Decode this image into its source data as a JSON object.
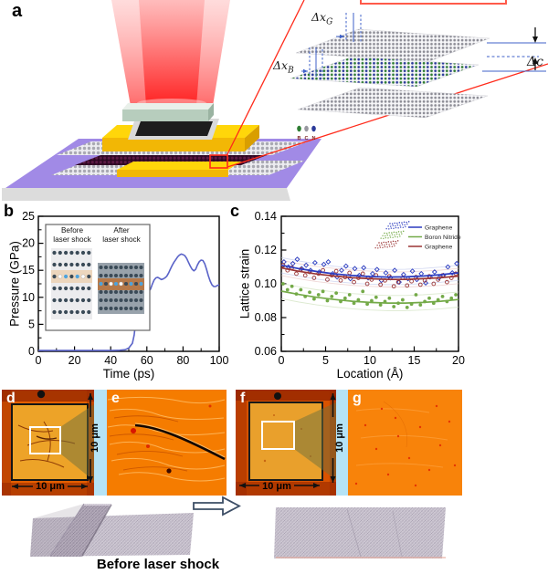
{
  "figure_labels": {
    "a": "a",
    "b": "b",
    "c": "c",
    "d": "d",
    "e": "e",
    "f": "f",
    "g": "g"
  },
  "panel_a": {
    "dx_g": {
      "base": "Δx",
      "sub": "G"
    },
    "dx_b": {
      "base": "Δx",
      "sub": "B"
    },
    "dc": "Δc",
    "atoms": [
      {
        "label": "B",
        "color": "#2e7d32"
      },
      {
        "label": "C",
        "color": "#97979f"
      },
      {
        "label": "N",
        "color": "#2b3a99"
      }
    ]
  },
  "colors": {
    "laser_red": "#ff4040",
    "substrate_purple": "#a18ae6",
    "stage_gold": "#ffd60a",
    "micrograph_orange": "#f57c00",
    "strip_blue": "#b5e3f6",
    "pressure_curve": "#5a63c8",
    "annotation_blue": "#3f62c9",
    "callout_red": "#ff2a1a"
  },
  "micrographs": {
    "scale_label": "10 μm"
  },
  "caption": {
    "before": "Before laser shock"
  },
  "chart_data": [
    {
      "type": "line",
      "xlabel": "Time (ps)",
      "ylabel": "Pressure (GPa)",
      "xlim": [
        0,
        100
      ],
      "ylim": [
        0,
        25
      ],
      "xtick_vals": [
        0,
        20,
        40,
        60,
        80,
        100
      ],
      "xtick_labels": [
        "0",
        "20",
        "40",
        "60",
        "80",
        "100"
      ],
      "ytick_vals": [
        0,
        5,
        10,
        15,
        20,
        25
      ],
      "ytick_labels": [
        "0",
        "5",
        "10",
        "15",
        "20",
        "25"
      ],
      "color": "#5a63c8",
      "points": [
        [
          0,
          0.15
        ],
        [
          10,
          0.15
        ],
        [
          20,
          0.15
        ],
        [
          30,
          0.15
        ],
        [
          40,
          0.15
        ],
        [
          45,
          0.2
        ],
        [
          48,
          0.3
        ],
        [
          50,
          0.6
        ],
        [
          52,
          1.5
        ],
        [
          53,
          3
        ],
        [
          54,
          6
        ],
        [
          55,
          11
        ],
        [
          56,
          19
        ],
        [
          57,
          23.2
        ],
        [
          57.5,
          22
        ],
        [
          58,
          17
        ],
        [
          59,
          13
        ],
        [
          60,
          11.6
        ],
        [
          61,
          11.1
        ],
        [
          62,
          11.5
        ],
        [
          63,
          12.4
        ],
        [
          64,
          13.2
        ],
        [
          65,
          13.6
        ],
        [
          66,
          13.7
        ],
        [
          67,
          13.5
        ],
        [
          68,
          13.3
        ],
        [
          69,
          13.4
        ],
        [
          70,
          13.6
        ],
        [
          71,
          13.9
        ],
        [
          72,
          14.5
        ],
        [
          73,
          15.2
        ],
        [
          74,
          15.9
        ],
        [
          75,
          16.5
        ],
        [
          76,
          17.0
        ],
        [
          77,
          17.5
        ],
        [
          78,
          17.8
        ],
        [
          79,
          18.0
        ],
        [
          80,
          17.9
        ],
        [
          81,
          17.7
        ],
        [
          82,
          17.2
        ],
        [
          83,
          16.5
        ],
        [
          84,
          15.8
        ],
        [
          85,
          15.2
        ],
        [
          86,
          14.9
        ],
        [
          87,
          15.2
        ],
        [
          88,
          16.0
        ],
        [
          89,
          16.6
        ],
        [
          90,
          16.9
        ],
        [
          91,
          16.8
        ],
        [
          92,
          16.2
        ],
        [
          93,
          15.2
        ],
        [
          94,
          14.0
        ],
        [
          95,
          13.0
        ],
        [
          96,
          12.3
        ],
        [
          97,
          12.0
        ],
        [
          98,
          12.0
        ],
        [
          99,
          12.2
        ],
        [
          100,
          12.3
        ]
      ],
      "inset": {
        "left_title_1": "Before",
        "left_title_2": "laser shock",
        "right_title_1": "After",
        "right_title_2": "laser shock",
        "dot_dark": "#3a4a57",
        "dot_blue": "#4da3dd",
        "dot_white": "#ffffff",
        "before_bg": "#ececee",
        "after_bg": "#98a2ab",
        "before_band": "#ecd6bd",
        "after_band": "#b5794a",
        "before_special": [
          "dark",
          "white",
          "blue",
          "dark",
          "blue",
          "white",
          "dark"
        ],
        "after_special": [
          "blue",
          "dark",
          "white",
          "blue",
          "white",
          "dark",
          "blue",
          "dark",
          "blue"
        ]
      }
    },
    {
      "type": "scatter",
      "xlabel": "Location (Å)",
      "ylabel": "Lattice strain",
      "xlim": [
        0,
        20
      ],
      "ylim": [
        0.06,
        0.14
      ],
      "xtick_vals": [
        0,
        5,
        10,
        15,
        20
      ],
      "xtick_labels": [
        "0",
        "5",
        "10",
        "15",
        "20"
      ],
      "ytick_vals": [
        0.06,
        0.08,
        0.1,
        0.12,
        0.14
      ],
      "ytick_labels": [
        "0.06",
        "0.08",
        "0.10",
        "0.12",
        "0.14"
      ],
      "legend_position": "top-right",
      "series": [
        {
          "name": "Graphene",
          "color": "#2b3bbf",
          "marker": "open-diamond",
          "band_color": "#b9c2ea",
          "curve": [
            [
              0,
              0.111
            ],
            [
              2,
              0.109
            ],
            [
              4,
              0.1073
            ],
            [
              6,
              0.1059
            ],
            [
              8,
              0.1049
            ],
            [
              10,
              0.1043
            ],
            [
              12,
              0.104
            ],
            [
              14,
              0.1041
            ],
            [
              16,
              0.1046
            ],
            [
              18,
              0.1054
            ],
            [
              20,
              0.1065
            ]
          ],
          "points": [
            [
              0.3,
              0.113
            ],
            [
              0.8,
              0.11
            ],
            [
              1.3,
              0.112
            ],
            [
              1.8,
              0.1145
            ],
            [
              2.3,
              0.109
            ],
            [
              2.8,
              0.111
            ],
            [
              3.3,
              0.108
            ],
            [
              3.8,
              0.1125
            ],
            [
              4.3,
              0.107
            ],
            [
              4.8,
              0.1115
            ],
            [
              5.3,
              0.113
            ],
            [
              5.8,
              0.106
            ],
            [
              6.3,
              0.104
            ],
            [
              6.8,
              0.108
            ],
            [
              7.3,
              0.1105
            ],
            [
              7.8,
              0.103
            ],
            [
              8.3,
              0.109
            ],
            [
              8.8,
              0.105
            ],
            [
              9.3,
              0.1095
            ],
            [
              9.8,
              0.1035
            ],
            [
              10.3,
              0.106
            ],
            [
              10.8,
              0.1085
            ],
            [
              11.3,
              0.102
            ],
            [
              11.8,
              0.1065
            ],
            [
              12.3,
              0.1035
            ],
            [
              12.8,
              0.108
            ],
            [
              13.3,
              0.101
            ],
            [
              13.8,
              0.1055
            ],
            [
              14.3,
              0.103
            ],
            [
              14.8,
              0.1075
            ],
            [
              15.3,
              0.1025
            ],
            [
              15.8,
              0.106
            ],
            [
              16.3,
              0.1005
            ],
            [
              16.8,
              0.104
            ],
            [
              17.3,
              0.107
            ],
            [
              17.8,
              0.1035
            ],
            [
              18.3,
              0.105
            ],
            [
              18.8,
              0.11
            ],
            [
              19.3,
              0.1065
            ],
            [
              19.8,
              0.112
            ]
          ]
        },
        {
          "name": "Boron Nitride",
          "color": "#74aa48",
          "marker": "filled-circle",
          "band_color": "#c6dcb2",
          "curve": [
            [
              0,
              0.0957
            ],
            [
              2,
              0.0937
            ],
            [
              4,
              0.092
            ],
            [
              6,
              0.0907
            ],
            [
              8,
              0.0897
            ],
            [
              10,
              0.089
            ],
            [
              12,
              0.0886
            ],
            [
              14,
              0.0886
            ],
            [
              16,
              0.089
            ],
            [
              18,
              0.0897
            ],
            [
              20,
              0.0907
            ]
          ],
          "points": [
            [
              0.2,
              0.1
            ],
            [
              0.7,
              0.0965
            ],
            [
              1.2,
              0.0985
            ],
            [
              1.7,
              0.094
            ],
            [
              2.2,
              0.0965
            ],
            [
              2.7,
              0.0925
            ],
            [
              3.2,
              0.095
            ],
            [
              3.7,
              0.091
            ],
            [
              4.2,
              0.0935
            ],
            [
              4.7,
              0.0955
            ],
            [
              5.2,
              0.09
            ],
            [
              5.7,
              0.0925
            ],
            [
              6.2,
              0.0945
            ],
            [
              6.7,
              0.0895
            ],
            [
              7.2,
              0.0915
            ],
            [
              7.7,
              0.0935
            ],
            [
              8.2,
              0.0885
            ],
            [
              8.7,
              0.0905
            ],
            [
              9.2,
              0.0955
            ],
            [
              9.7,
              0.088
            ],
            [
              10.2,
              0.09
            ],
            [
              10.7,
              0.092
            ],
            [
              11.2,
              0.0875
            ],
            [
              11.7,
              0.0895
            ],
            [
              12.2,
              0.0915
            ],
            [
              12.7,
              0.0865
            ],
            [
              13.2,
              0.0885
            ],
            [
              13.7,
              0.0905
            ],
            [
              14.2,
              0.086
            ],
            [
              14.7,
              0.088
            ],
            [
              15.2,
              0.0935
            ],
            [
              15.7,
              0.0875
            ],
            [
              16.2,
              0.0895
            ],
            [
              16.7,
              0.0915
            ],
            [
              17.2,
              0.0885
            ],
            [
              17.7,
              0.0905
            ],
            [
              18.2,
              0.0925
            ],
            [
              18.7,
              0.0895
            ],
            [
              19.2,
              0.0915
            ],
            [
              19.7,
              0.0935
            ]
          ]
        },
        {
          "name": "Graphene",
          "color": "#9a3434",
          "marker": "open-circle",
          "band_color": "#e4bcbc",
          "curve": [
            [
              0,
              0.1094
            ],
            [
              2,
              0.1074
            ],
            [
              4,
              0.1058
            ],
            [
              6,
              0.1046
            ],
            [
              8,
              0.1036
            ],
            [
              10,
              0.103
            ],
            [
              12,
              0.1026
            ],
            [
              14,
              0.1026
            ],
            [
              16,
              0.103
            ],
            [
              18,
              0.1036
            ],
            [
              20,
              0.1046
            ]
          ],
          "points": [
            [
              0.2,
              0.111
            ],
            [
              0.7,
              0.108
            ],
            [
              1.2,
              0.1095
            ],
            [
              1.7,
              0.106
            ],
            [
              2.2,
              0.1085
            ],
            [
              2.7,
              0.105
            ],
            [
              3.2,
              0.107
            ],
            [
              3.7,
              0.1035
            ],
            [
              4.2,
              0.106
            ],
            [
              4.7,
              0.108
            ],
            [
              5.2,
              0.1025
            ],
            [
              5.7,
              0.105
            ],
            [
              6.2,
              0.1075
            ],
            [
              6.7,
              0.102
            ],
            [
              7.2,
              0.104
            ],
            [
              7.7,
              0.1065
            ],
            [
              8.2,
              0.101
            ],
            [
              8.7,
              0.1035
            ],
            [
              9.2,
              0.106
            ],
            [
              9.7,
              0.1
            ],
            [
              10.2,
              0.1025
            ],
            [
              10.7,
              0.105
            ],
            [
              11.2,
              0.0995
            ],
            [
              11.7,
              0.102
            ],
            [
              12.2,
              0.1045
            ],
            [
              12.7,
              0.0985
            ],
            [
              13.2,
              0.101
            ],
            [
              13.7,
              0.1035
            ],
            [
              14.2,
              0.099
            ],
            [
              14.7,
              0.1015
            ],
            [
              15.2,
              0.104
            ],
            [
              15.7,
              0.0995
            ],
            [
              16.2,
              0.102
            ],
            [
              16.7,
              0.1045
            ],
            [
              17.2,
              0.1
            ],
            [
              17.7,
              0.1025
            ],
            [
              18.2,
              0.105
            ],
            [
              18.7,
              0.101
            ],
            [
              19.2,
              0.1035
            ],
            [
              19.7,
              0.106
            ]
          ]
        }
      ]
    }
  ]
}
